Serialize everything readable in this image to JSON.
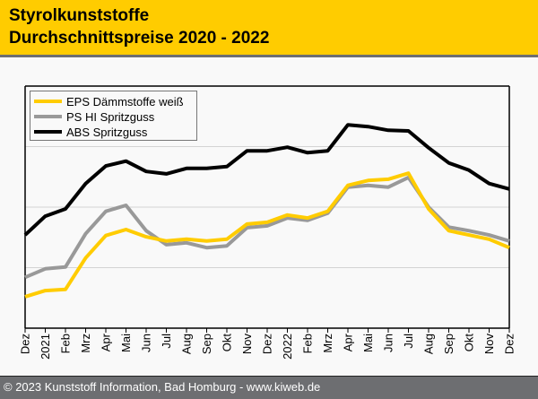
{
  "header": {
    "title_line1": "Styrolkunststoffe",
    "title_line2": "Durchschnittspreise 2020 - 2022"
  },
  "footer": {
    "copyright": "© 2023 Kunststoff Information, Bad Homburg - www.kiweb.de"
  },
  "colors": {
    "header_bg": "#ffcc00",
    "footer_bg": "#6d6e71",
    "eps": "#ffcc00",
    "ps_hi": "#999999",
    "abs": "#000000"
  },
  "chart_data": {
    "type": "line",
    "title": "Styrolkunststoffe Durchschnittspreise 2020 - 2022",
    "xlabel": "",
    "ylabel": "",
    "y_tick_labels_shown": false,
    "y_units_note": "relative index (no y-axis values shown); gridlines at 1, 2, 3",
    "ylim": [
      0,
      4
    ],
    "y_gridlines": [
      1,
      2,
      3
    ],
    "grid": true,
    "legend_position": "top-left",
    "categories": [
      "Dez",
      "2021",
      "Feb",
      "Mrz",
      "Apr",
      "Mai",
      "Jun",
      "Jul",
      "Aug",
      "Sep",
      "Okt",
      "Nov",
      "Dez",
      "2022",
      "Feb",
      "Mrz",
      "Apr",
      "Mai",
      "Jun",
      "Jul",
      "Aug",
      "Sep",
      "Okt",
      "Nov",
      "Dez"
    ],
    "series": [
      {
        "name": "EPS Dämmstoffe weiß",
        "color": "#ffcc00",
        "values": [
          0.52,
          0.62,
          0.64,
          1.16,
          1.53,
          1.63,
          1.51,
          1.44,
          1.47,
          1.44,
          1.47,
          1.72,
          1.75,
          1.87,
          1.82,
          1.93,
          2.36,
          2.44,
          2.46,
          2.56,
          1.97,
          1.61,
          1.54,
          1.47,
          1.33
        ]
      },
      {
        "name": "PS HI Spritzguss",
        "color": "#999999",
        "values": [
          0.84,
          0.98,
          1.01,
          1.56,
          1.93,
          2.03,
          1.61,
          1.38,
          1.41,
          1.33,
          1.36,
          1.66,
          1.69,
          1.82,
          1.78,
          1.9,
          2.33,
          2.36,
          2.33,
          2.49,
          2.0,
          1.67,
          1.61,
          1.54,
          1.44
        ]
      },
      {
        "name": "ABS Spritzguss",
        "color": "#000000",
        "values": [
          1.54,
          1.85,
          1.97,
          2.39,
          2.68,
          2.76,
          2.59,
          2.55,
          2.64,
          2.64,
          2.67,
          2.93,
          2.93,
          2.99,
          2.9,
          2.93,
          3.36,
          3.33,
          3.27,
          3.26,
          2.98,
          2.73,
          2.61,
          2.39,
          2.3
        ]
      }
    ]
  }
}
